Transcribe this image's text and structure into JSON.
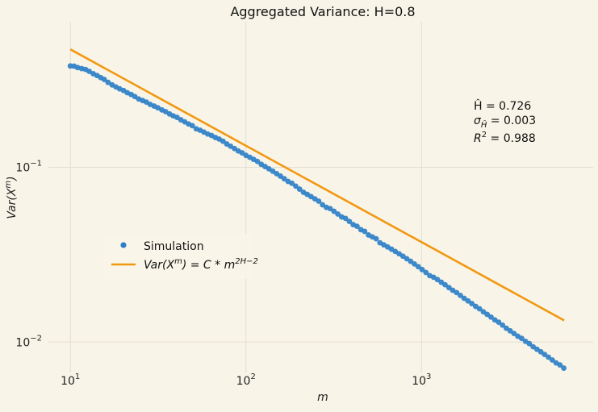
{
  "chart_data": {
    "type": "scatter",
    "title": "Aggregated Variance: H=0.8",
    "xlabel": "m",
    "ylabel": "Var(X^m)",
    "xscale": "log",
    "yscale": "log",
    "xlim": [
      7.5,
      9500
    ],
    "ylim": [
      0.0067,
      0.68
    ],
    "x_ticks": [
      {
        "base": "10",
        "exp": "1",
        "value": 10
      },
      {
        "base": "10",
        "exp": "2",
        "value": 100
      },
      {
        "base": "10",
        "exp": "3",
        "value": 1000
      }
    ],
    "y_ticks": [
      {
        "base": "10",
        "exp": "−1",
        "value": 0.1
      },
      {
        "base": "10",
        "exp": "−2",
        "value": 0.01
      }
    ],
    "grid": true,
    "legend_position": "center-left",
    "colors": {
      "points": "#2e7fc7",
      "fit": "#f29811",
      "background": "#f8f5e8",
      "grid": "#e2ddd0"
    },
    "series": [
      {
        "name": "Simulation",
        "marker": "circle",
        "x": [
          10,
          10.5,
          11,
          11.6,
          12.2,
          12.8,
          13.5,
          14.2,
          14.9,
          15.6,
          16.4,
          17.3,
          18.2,
          19.1,
          20.1,
          21.1,
          22.2,
          23.3,
          24.5,
          25.8,
          27.1,
          28.5,
          30,
          31.5,
          33.2,
          34.9,
          36.7,
          38.5,
          40.5,
          42.6,
          44.8,
          47.1,
          49.5,
          52.1,
          54.8,
          57.6,
          60.6,
          63.7,
          67,
          70.4,
          74,
          77.8,
          81.8,
          86.1,
          90.5,
          95.1,
          100,
          105.2,
          110.6,
          116.3,
          122.3,
          128.6,
          135.2,
          142.2,
          149.5,
          157.2,
          165.3,
          173.8,
          182.8,
          192.2,
          202.1,
          212.5,
          223.4,
          234.9,
          247,
          259.8,
          273.1,
          287.2,
          302,
          317.5,
          333.9,
          351.1,
          369.2,
          388.2,
          408.2,
          429.2,
          451.3,
          474.5,
          499,
          524.7,
          551.7,
          580.1,
          610,
          641.4,
          674.5,
          709.2,
          745.7,
          784.1,
          824.5,
          867,
          911.6,
          958.6,
          1008,
          1060,
          1114,
          1172,
          1232,
          1296,
          1362,
          1433,
          1506,
          1584,
          1665,
          1751,
          1841,
          1936,
          2036,
          2141,
          2251,
          2367,
          2489,
          2617,
          2752,
          2894,
          3043,
          3199,
          3364,
          3537,
          3719,
          3911,
          4113,
          4324,
          4547,
          4781,
          5027,
          5286,
          5559,
          5845,
          6146,
          6463
        ],
        "y": [
          0.38,
          0.379,
          0.372,
          0.367,
          0.363,
          0.354,
          0.343,
          0.335,
          0.326,
          0.318,
          0.306,
          0.296,
          0.288,
          0.281,
          0.275,
          0.267,
          0.261,
          0.254,
          0.246,
          0.241,
          0.236,
          0.229,
          0.224,
          0.219,
          0.213,
          0.208,
          0.202,
          0.197,
          0.193,
          0.187,
          0.182,
          0.177,
          0.173,
          0.166,
          0.163,
          0.159,
          0.155,
          0.152,
          0.148,
          0.145,
          0.141,
          0.136,
          0.132,
          0.128,
          0.124,
          0.121,
          0.117,
          0.114,
          0.111,
          0.108,
          0.104,
          0.101,
          0.098,
          0.095,
          0.092,
          0.089,
          0.086,
          0.083,
          0.081,
          0.078,
          0.075,
          0.072,
          0.07,
          0.068,
          0.066,
          0.064,
          0.061,
          0.059,
          0.058,
          0.056,
          0.054,
          0.052,
          0.051,
          0.049,
          0.047,
          0.046,
          0.044,
          0.043,
          0.041,
          0.04,
          0.039,
          0.037,
          0.036,
          0.035,
          0.034,
          0.033,
          0.032,
          0.031,
          0.03,
          0.029,
          0.028,
          0.027,
          0.026,
          0.025,
          0.024,
          0.0235,
          0.0228,
          0.022,
          0.0213,
          0.0205,
          0.0198,
          0.0192,
          0.0185,
          0.0178,
          0.0172,
          0.0166,
          0.016,
          0.0155,
          0.0149,
          0.0144,
          0.0139,
          0.0134,
          0.013,
          0.0125,
          0.012,
          0.0116,
          0.0112,
          0.0108,
          0.0105,
          0.0101,
          0.0098,
          0.0094,
          0.0091,
          0.0088,
          0.0085,
          0.0082,
          0.0079,
          0.0076,
          0.0074,
          0.0071
        ]
      },
      {
        "name": "Var(X^m) = C * m^{2H-2}",
        "kind": "fit-line",
        "x": [
          10,
          6500
        ],
        "y": [
          0.473,
          0.0133
        ]
      }
    ],
    "legend": [
      {
        "kind": "marker",
        "text": "Simulation"
      },
      {
        "kind": "line",
        "text_parts": [
          "Var(X",
          "m",
          ") = C * m",
          "2H−2"
        ]
      }
    ],
    "annotations": {
      "h_hat": "Ĥ = 0.726",
      "sigma_h": "σ",
      "sigma_h_sub": "Ĥ",
      "sigma_h_value": " = 0.003",
      "r2_prefix": "R",
      "r2_exp": "2",
      "r2_value": " = 0.988"
    }
  }
}
